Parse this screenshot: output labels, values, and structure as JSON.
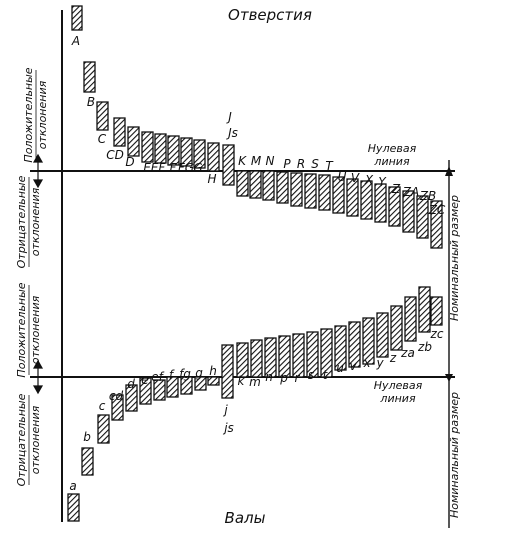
{
  "titles": {
    "holes": "Отверстия",
    "shafts": "Валы"
  },
  "zero_line": {
    "holes": [
      "Нулевая",
      "линия"
    ],
    "shafts": [
      "Нулевая",
      "линия"
    ]
  },
  "side_labels": {
    "holes_positive": [
      "Положительные",
      "отклонения"
    ],
    "holes_negative": [
      "Отрицательные",
      "отклонения"
    ],
    "shafts_positive": [
      "Положительные",
      "отклонения"
    ],
    "shafts_negative": [
      "Отрицательные",
      "отклонения"
    ]
  },
  "nominal_size": "Номинальный размер",
  "holes": [
    {
      "label": "A",
      "dir": "up"
    },
    {
      "label": "B",
      "dir": "up"
    },
    {
      "label": "C",
      "dir": "up"
    },
    {
      "label": "CD",
      "dir": "up"
    },
    {
      "label": "D",
      "dir": "up"
    },
    {
      "label": "E",
      "dir": "up"
    },
    {
      "label": "EF",
      "dir": "up"
    },
    {
      "label": "F",
      "dir": "up"
    },
    {
      "label": "FG",
      "dir": "up"
    },
    {
      "label": "G",
      "dir": "up"
    },
    {
      "label": "H",
      "dir": "up"
    },
    {
      "label": "J",
      "dir": "js"
    },
    {
      "label": "Js",
      "dir": "js"
    },
    {
      "label": "K",
      "dir": "down"
    },
    {
      "label": "M",
      "dir": "down"
    },
    {
      "label": "N",
      "dir": "down"
    },
    {
      "label": "P",
      "dir": "down"
    },
    {
      "label": "R",
      "dir": "down"
    },
    {
      "label": "S",
      "dir": "down"
    },
    {
      "label": "T",
      "dir": "down"
    },
    {
      "label": "U",
      "dir": "down"
    },
    {
      "label": "V",
      "dir": "down"
    },
    {
      "label": "X",
      "dir": "down"
    },
    {
      "label": "Y",
      "dir": "down"
    },
    {
      "label": "Z",
      "dir": "down"
    },
    {
      "label": "ZA",
      "dir": "down"
    },
    {
      "label": "ZB",
      "dir": "down"
    },
    {
      "label": "ZC",
      "dir": "down"
    }
  ],
  "shafts": [
    {
      "label": "a",
      "dir": "down"
    },
    {
      "label": "b",
      "dir": "down"
    },
    {
      "label": "c",
      "dir": "down"
    },
    {
      "label": "cd",
      "dir": "down"
    },
    {
      "label": "d",
      "dir": "down"
    },
    {
      "label": "e",
      "dir": "down"
    },
    {
      "label": "ef",
      "dir": "down"
    },
    {
      "label": "f",
      "dir": "down"
    },
    {
      "label": "fg",
      "dir": "down"
    },
    {
      "label": "g",
      "dir": "down"
    },
    {
      "label": "h",
      "dir": "down"
    },
    {
      "label": "j",
      "dir": "js"
    },
    {
      "label": "js",
      "dir": "js"
    },
    {
      "label": "k",
      "dir": "up"
    },
    {
      "label": "m",
      "dir": "up"
    },
    {
      "label": "n",
      "dir": "up"
    },
    {
      "label": "p",
      "dir": "up"
    },
    {
      "label": "r",
      "dir": "up"
    },
    {
      "label": "s",
      "dir": "up"
    },
    {
      "label": "t",
      "dir": "up"
    },
    {
      "label": "u",
      "dir": "up"
    },
    {
      "label": "v",
      "dir": "up"
    },
    {
      "label": "x",
      "dir": "up"
    },
    {
      "label": "y",
      "dir": "up"
    },
    {
      "label": "z",
      "dir": "up"
    },
    {
      "label": "za",
      "dir": "up"
    },
    {
      "label": "zb",
      "dir": "up"
    },
    {
      "label": "zc",
      "dir": "up"
    }
  ]
}
